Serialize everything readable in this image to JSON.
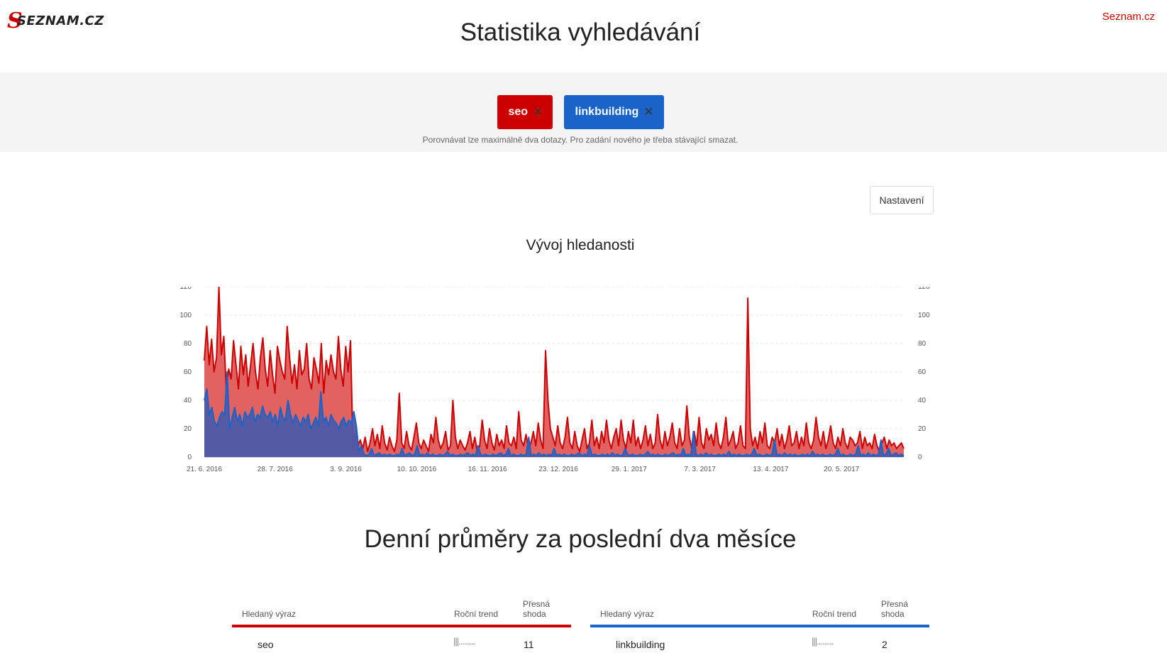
{
  "header": {
    "logo_text": "SEZNAM.CZ",
    "top_link": "Seznam.cz",
    "title": "Statistika vyhledávání"
  },
  "queries": {
    "chips": [
      {
        "label": "seo",
        "color": "#cc0000"
      },
      {
        "label": "linkbuilding",
        "color": "#1a63c8"
      }
    ],
    "remove_symbol": "✕",
    "hint": "Porovnávat lze maximálně dva dotazy. Pro zadání nového je třeba stávající smazat."
  },
  "settings_label": "Nastavení",
  "chart_title": "Vývoj hledanosti",
  "chart_data": {
    "type": "area",
    "title": "Vývoj hledanosti",
    "x_tick_labels": [
      "21. 6. 2016",
      "28. 7. 2016",
      "3. 9. 2016",
      "10. 10. 2016",
      "16. 11. 2016",
      "23. 12. 2016",
      "29. 1. 2017",
      "7. 3. 2017",
      "13. 4. 2017",
      "20. 5. 2017"
    ],
    "y_ticks": [
      0,
      20,
      40,
      60,
      80,
      100,
      120
    ],
    "ylim": [
      0,
      120
    ],
    "grid": true,
    "series": [
      {
        "name": "seo",
        "color": "#cc0000",
        "fill": "#e05a5a",
        "values": [
          68,
          92,
          65,
          83,
          60,
          70,
          120,
          72,
          85,
          48,
          62,
          55,
          82,
          65,
          48,
          78,
          58,
          72,
          50,
          65,
          80,
          60,
          48,
          70,
          84,
          62,
          50,
          75,
          58,
          45,
          78,
          68,
          60,
          55,
          92,
          70,
          52,
          65,
          48,
          75,
          58,
          62,
          80,
          55,
          48,
          70,
          62,
          52,
          80,
          45,
          68,
          58,
          72,
          60,
          55,
          85,
          62,
          50,
          78,
          60,
          82,
          5,
          18,
          8,
          12,
          6,
          14,
          4,
          10,
          20,
          8,
          16,
          6,
          22,
          10,
          5,
          14,
          8,
          4,
          12,
          45,
          10,
          6,
          18,
          8,
          5,
          14,
          24,
          10,
          6,
          12,
          8,
          4,
          16,
          10,
          28,
          12,
          6,
          10,
          18,
          5,
          8,
          40,
          14,
          6,
          12,
          8,
          5,
          10,
          18,
          6,
          14,
          4,
          8,
          26,
          12,
          6,
          20,
          10,
          5,
          16,
          8,
          12,
          6,
          22,
          10,
          8,
          14,
          6,
          32,
          12,
          8,
          16,
          6,
          10,
          18,
          8,
          24,
          12,
          6,
          75,
          40,
          20,
          14,
          8,
          22,
          10,
          6,
          14,
          28,
          10,
          6,
          18,
          8,
          4,
          12,
          20,
          6,
          10,
          26,
          8,
          14,
          6,
          18,
          10,
          26,
          12,
          6,
          14,
          20,
          8,
          26,
          12,
          6,
          18,
          10,
          26,
          8,
          14,
          6,
          12,
          22,
          8,
          16,
          6,
          10,
          30,
          12,
          6,
          18,
          8,
          14,
          24,
          10,
          6,
          20,
          8,
          12,
          36,
          14,
          6,
          18,
          8,
          28,
          10,
          6,
          20,
          12,
          16,
          8,
          24,
          10,
          6,
          14,
          28,
          8,
          12,
          18,
          6,
          10,
          22,
          8,
          6,
          112,
          20,
          8,
          14,
          6,
          18,
          10,
          24,
          8,
          6,
          14,
          10,
          20,
          8,
          16,
          6,
          12,
          22,
          8,
          10,
          18,
          6,
          14,
          8,
          24,
          10,
          6,
          12,
          28,
          14,
          8,
          18,
          6,
          12,
          22,
          10,
          6,
          14,
          8,
          20,
          10,
          6,
          14,
          12,
          8,
          10,
          18,
          6,
          14,
          8,
          10,
          6,
          16,
          8,
          4,
          10,
          14,
          6,
          12,
          8,
          10,
          6,
          8,
          10,
          6
        ]
      },
      {
        "name": "linkbuilding",
        "color": "#1a63c8",
        "fill": "#4d5aa8",
        "values": [
          40,
          48,
          30,
          35,
          25,
          22,
          28,
          32,
          30,
          60,
          20,
          28,
          35,
          25,
          30,
          22,
          32,
          28,
          30,
          35,
          25,
          30,
          28,
          36,
          30,
          28,
          32,
          25,
          30,
          22,
          35,
          28,
          26,
          40,
          30,
          24,
          30,
          26,
          22,
          28,
          25,
          30,
          20,
          24,
          28,
          22,
          46,
          25,
          28,
          22,
          30,
          26,
          24,
          20,
          25,
          28,
          22,
          26,
          24,
          32,
          22,
          4,
          8,
          2,
          1,
          2,
          6,
          1,
          2,
          3,
          1,
          2,
          1,
          2,
          1,
          1,
          2,
          1,
          6,
          1,
          2,
          3,
          1,
          2,
          8,
          1,
          2,
          1,
          3,
          1,
          2,
          1,
          1,
          2,
          1,
          2,
          4,
          1,
          2,
          1,
          1,
          2,
          1,
          2,
          3,
          1,
          2,
          1,
          8,
          2,
          1,
          2,
          1,
          1,
          2,
          1,
          2,
          3,
          1,
          2,
          6,
          1,
          2,
          1,
          1,
          2,
          1,
          2,
          14,
          1,
          2,
          1,
          3,
          1,
          2,
          1,
          2,
          1,
          6,
          1,
          2,
          1,
          2,
          1,
          1,
          2,
          1,
          2,
          3,
          1,
          2,
          1,
          8,
          1,
          2,
          1,
          1,
          2,
          1,
          2,
          1,
          3,
          1,
          2,
          1,
          1,
          6,
          2,
          1,
          2,
          1,
          1,
          2,
          1,
          2,
          4,
          1,
          2,
          1,
          2,
          1,
          1,
          2,
          1,
          2,
          3,
          1,
          2,
          1,
          6,
          1,
          2,
          1,
          18,
          2,
          1,
          2,
          1,
          3,
          1,
          2,
          1,
          1,
          2,
          1,
          2,
          1,
          4,
          1,
          2,
          1,
          2,
          1,
          1,
          2,
          1,
          2,
          6,
          1,
          2,
          1,
          1,
          2,
          1,
          2,
          12,
          1,
          2,
          1,
          3,
          1,
          2,
          1,
          2,
          1,
          1,
          2,
          1,
          2,
          1,
          4,
          1,
          2,
          1,
          2,
          1,
          1,
          2,
          1,
          2,
          6,
          1,
          2,
          1,
          1,
          2,
          1,
          2,
          8,
          1,
          2,
          1,
          3,
          1,
          2,
          1,
          2,
          12,
          1,
          2,
          6,
          1,
          2,
          3,
          1,
          2,
          1
        ]
      }
    ]
  },
  "section_title": "Denní průměry za poslední dva měsíce",
  "tables": [
    {
      "headers": {
        "term": "Hledaný výraz",
        "trend": "Roční trend",
        "exact": "Přesná shoda"
      },
      "rows": [
        {
          "term": "seo",
          "trend": "|||.........",
          "exact": "11"
        }
      ],
      "accent": "#cc0000"
    },
    {
      "headers": {
        "term": "Hledaný výraz",
        "trend": "Roční trend",
        "exact": "Přesná shoda"
      },
      "rows": [
        {
          "term": "linkbuilding",
          "trend": "|||.........",
          "exact": "2"
        }
      ],
      "accent": "#1a63c8"
    }
  ]
}
